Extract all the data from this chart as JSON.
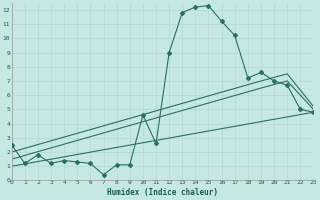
{
  "xlabel": "Humidex (Indice chaleur)",
  "xlim": [
    0,
    23
  ],
  "ylim": [
    0,
    12.5
  ],
  "yticks": [
    0,
    1,
    2,
    3,
    4,
    5,
    6,
    7,
    8,
    9,
    10,
    11,
    12
  ],
  "xticks": [
    0,
    1,
    2,
    3,
    4,
    5,
    6,
    7,
    8,
    9,
    10,
    11,
    12,
    13,
    14,
    15,
    16,
    17,
    18,
    19,
    20,
    21,
    22,
    23
  ],
  "background_color": "#c5e8e4",
  "grid_color": "#b5d8d4",
  "line_color": "#2a6e65",
  "figsize": [
    3.2,
    2.0
  ],
  "dpi": 100,
  "line1_x": [
    0,
    1,
    2,
    3,
    4,
    5,
    6,
    7,
    8,
    9,
    10,
    11,
    12,
    13,
    14,
    15,
    16,
    17,
    18,
    19,
    20,
    21,
    22,
    23
  ],
  "line1_y": [
    2.5,
    1.2,
    1.8,
    1.2,
    1.4,
    1.3,
    1.2,
    0.4,
    1.1,
    1.1,
    4.6,
    2.6,
    9.0,
    11.8,
    12.2,
    12.3,
    11.2,
    10.2,
    7.2,
    7.6,
    7.0,
    6.7,
    5.0,
    4.8
  ],
  "line2_x": [
    0,
    23
  ],
  "line2_y": [
    1.0,
    4.8
  ],
  "line3_x": [
    0,
    19,
    21,
    23
  ],
  "line3_y": [
    1.5,
    6.5,
    7.0,
    5.0
  ],
  "line4_x": [
    0,
    19,
    21,
    23
  ],
  "line4_y": [
    2.0,
    7.0,
    7.5,
    5.2
  ]
}
